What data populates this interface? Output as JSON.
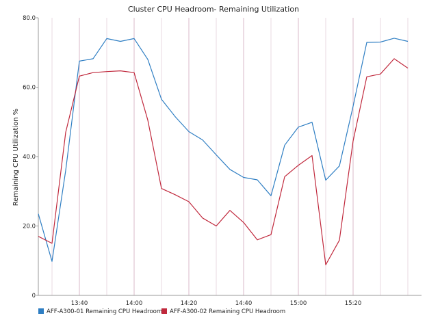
{
  "chart_data": {
    "type": "line",
    "title": "Cluster CPU Headroom- Remaining Utilization",
    "xlabel": "",
    "ylabel": "Remaining CPU Utilization %",
    "y_ticks": [
      "0",
      "20.0",
      "40.0",
      "60.0",
      "80.0"
    ],
    "ylim": [
      0,
      80
    ],
    "x_tick_labels": [
      "13:40",
      "14:00",
      "14:20",
      "14:40",
      "15:00",
      "15:20"
    ],
    "x_tick_minutes": [
      40,
      60,
      80,
      100,
      120,
      140
    ],
    "xlim_minutes": [
      25,
      165
    ],
    "grid": "vertical-lines",
    "legend_position": "bottom-left",
    "x": [
      "13:25",
      "13:30",
      "13:35",
      "13:40",
      "13:45",
      "13:50",
      "13:55",
      "14:00",
      "14:05",
      "14:10",
      "14:15",
      "14:20",
      "14:25",
      "14:30",
      "14:35",
      "14:40",
      "14:45",
      "14:50",
      "14:55",
      "15:00",
      "15:05",
      "15:10",
      "15:15",
      "15:20",
      "15:25",
      "15:30",
      "15:35",
      "15:40"
    ],
    "series": [
      {
        "name": "AFF-A300-01 Remaining CPU Headroom",
        "color": "#2e7ec3",
        "values": [
          23.5,
          9.8,
          36,
          67.5,
          68.2,
          74,
          73.2,
          74,
          68,
          56.5,
          51.5,
          47.2,
          44.8,
          40.5,
          36.3,
          34,
          33.3,
          28.7,
          43.3,
          48.5,
          49.9,
          33.2,
          37.3,
          54.5,
          72.9,
          73,
          74.1,
          73.2
        ]
      },
      {
        "name": "AFF-A300-02 Remaining CPU Headroom",
        "color": "#c0283c",
        "values": [
          17,
          15,
          47,
          63.2,
          64.2,
          64.5,
          64.7,
          64.2,
          50.5,
          30.8,
          29,
          27,
          22.3,
          20,
          24.5,
          21,
          16,
          17.5,
          34.2,
          37.5,
          40.3,
          8.8,
          15.9,
          44.5,
          63,
          63.8,
          68.2,
          65.5
        ]
      }
    ]
  }
}
